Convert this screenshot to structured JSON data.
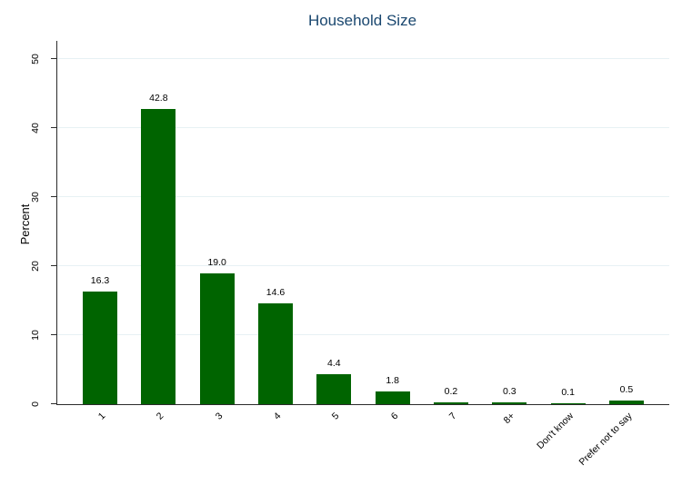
{
  "chart_data": {
    "type": "bar",
    "title": "Household Size",
    "ylabel": "Percent",
    "xlabel": "",
    "categories": [
      "1",
      "2",
      "3",
      "4",
      "5",
      "6",
      "7",
      "8+",
      "Don't know",
      "Prefer not to say"
    ],
    "values": [
      16.3,
      42.8,
      19.0,
      14.6,
      4.4,
      1.8,
      0.2,
      0.3,
      0.1,
      0.5
    ],
    "value_labels": [
      "16.3",
      "42.8",
      "19.0",
      "14.6",
      "4.4",
      "1.8",
      "0.2",
      "0.3",
      "0.1",
      "0.5"
    ],
    "yticks": [
      0,
      10,
      20,
      30,
      40,
      50
    ],
    "ylim": [
      0,
      52.6
    ],
    "grid": true,
    "legend": "none",
    "colors": {
      "bar": "#006400",
      "grid": "#e7f1f4",
      "axis": "#2b2b2b",
      "title": "#1a476f",
      "text": "#000000",
      "background": "#ffffff"
    }
  }
}
